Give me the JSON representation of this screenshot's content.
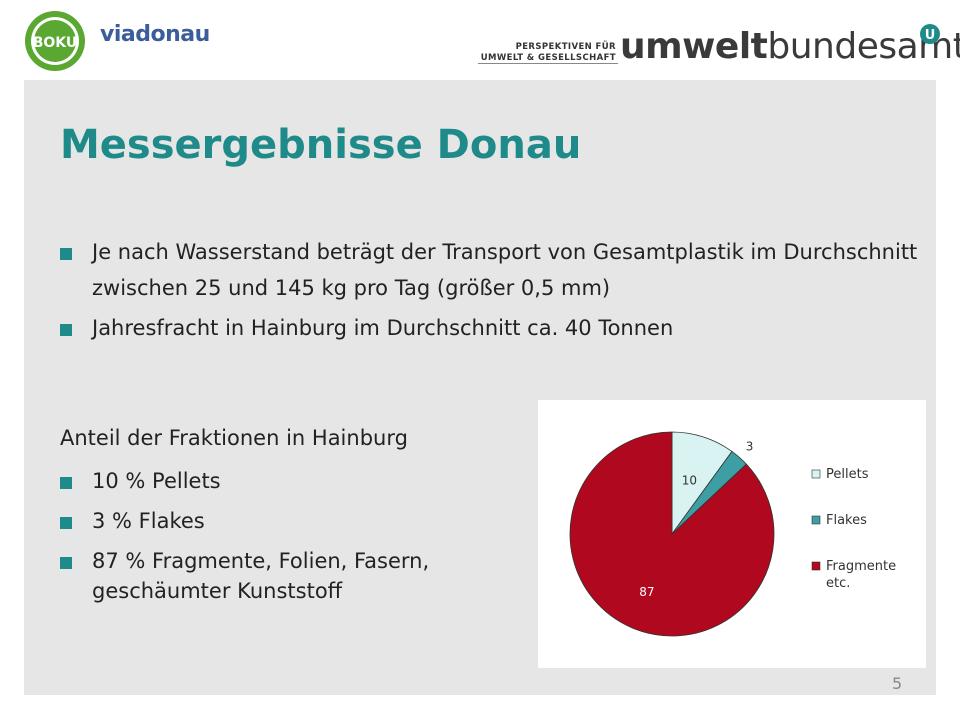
{
  "header": {
    "boku_logo_text": "BOKU",
    "viadonau": "viadonau",
    "uba_sub_1": "PERSPEKTIVEN FÜR",
    "uba_sub_2": "UMWELT & GESELLSCHAFT",
    "uba_name_a": "umwelt",
    "uba_name_b": "bundesamt",
    "uba_mark": "U"
  },
  "colors": {
    "accent_teal": "#1f8a8a",
    "slide_bg": "#e6e6e6",
    "pellets": "#d9f2f2",
    "flakes": "#3d9fa3",
    "fragmente": "#b0081e"
  },
  "slide": {
    "title": "Messergebnisse Donau",
    "bullets": [
      "Je nach Wasserstand beträgt der Transport von Gesamtplastik im Durchschnitt zwischen 25 und 145 kg pro Tag (größer 0,5 mm)",
      "Jahresfracht in Hainburg im Durchschnitt ca. 40 Tonnen"
    ],
    "subheading": "Anteil der Fraktionen in Hainburg",
    "fractions": [
      "10 % Pellets",
      "3 % Flakes",
      "87 % Fragmente, Folien, Fasern, geschäumter Kunststoff"
    ],
    "page_number": "5"
  },
  "chart_data": {
    "type": "pie",
    "categories": [
      "Pellets",
      "Flakes",
      "Fragmente etc."
    ],
    "values": [
      10,
      3,
      87
    ],
    "data_labels": [
      "10",
      "3",
      "87"
    ],
    "colors": [
      "#d9f2f2",
      "#3d9fa3",
      "#b0081e"
    ],
    "legend_position": "right"
  }
}
